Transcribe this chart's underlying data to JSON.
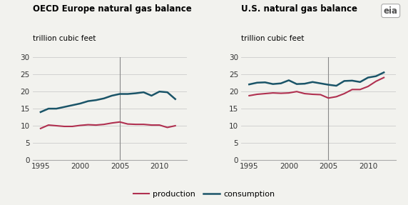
{
  "left_title": "OECD Europe natural gas balance",
  "right_title": "U.S. natural gas balance",
  "ylabel": "trillion cubic feet",
  "production_color": "#b03050",
  "consumption_color": "#1a5468",
  "vline_color": "#888888",
  "grid_color": "#cccccc",
  "bg_color": "#f2f2ee",
  "ylim": [
    0,
    30
  ],
  "yticks": [
    0,
    5,
    10,
    15,
    20,
    25,
    30
  ],
  "vline_x": 2005,
  "xticks": [
    1995,
    2000,
    2005,
    2010
  ],
  "left_prod_years": [
    1995,
    1996,
    1997,
    1998,
    1999,
    2000,
    2001,
    2002,
    2003,
    2004,
    2005,
    2006,
    2007,
    2008,
    2009,
    2010,
    2011,
    2012
  ],
  "left_prod_values": [
    9.2,
    10.2,
    10.0,
    9.8,
    9.8,
    10.1,
    10.3,
    10.2,
    10.4,
    10.8,
    11.1,
    10.5,
    10.4,
    10.4,
    10.2,
    10.2,
    9.5,
    10.0
  ],
  "left_cons_years": [
    1995,
    1996,
    1997,
    1998,
    1999,
    2000,
    2001,
    2002,
    2003,
    2004,
    2005,
    2006,
    2007,
    2008,
    2009,
    2010,
    2011,
    2012
  ],
  "left_cons_values": [
    14.0,
    15.0,
    15.0,
    15.5,
    16.0,
    16.5,
    17.2,
    17.5,
    18.0,
    18.8,
    19.3,
    19.3,
    19.5,
    19.8,
    18.8,
    20.0,
    19.8,
    17.8
  ],
  "right_prod_years": [
    1995,
    1996,
    1997,
    1998,
    1999,
    2000,
    2001,
    2002,
    2003,
    2004,
    2005,
    2006,
    2007,
    2008,
    2009,
    2010,
    2011,
    2012
  ],
  "right_prod_values": [
    18.8,
    19.2,
    19.4,
    19.6,
    19.5,
    19.6,
    20.0,
    19.4,
    19.2,
    19.1,
    18.1,
    18.5,
    19.4,
    20.6,
    20.6,
    21.5,
    23.0,
    24.1
  ],
  "right_cons_years": [
    1995,
    1996,
    1997,
    1998,
    1999,
    2000,
    2001,
    2002,
    2003,
    2004,
    2005,
    2006,
    2007,
    2008,
    2009,
    2010,
    2011,
    2012
  ],
  "right_cons_values": [
    22.1,
    22.6,
    22.7,
    22.2,
    22.4,
    23.3,
    22.2,
    22.3,
    22.8,
    22.4,
    22.0,
    21.7,
    23.1,
    23.2,
    22.8,
    24.1,
    24.5,
    25.6
  ],
  "eia_text": "eia"
}
